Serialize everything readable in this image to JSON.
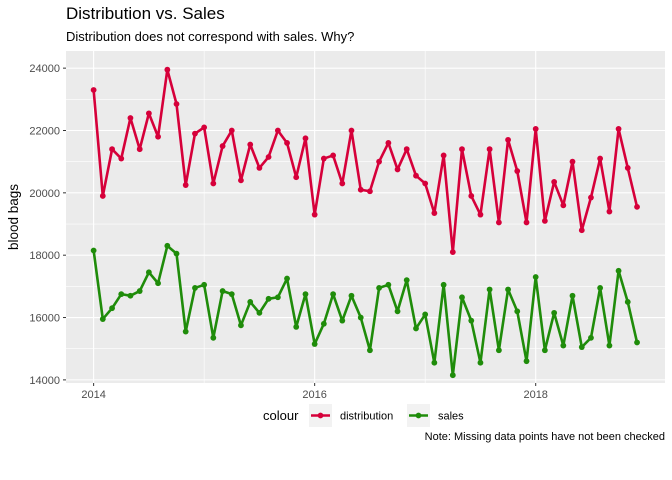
{
  "title": "Distribution vs. Sales",
  "subtitle": "Distribution does not correspond with sales. Why?",
  "caption": "Note: Missing data points have not been checked",
  "chart_data": {
    "type": "line",
    "ylabel": "blood bags",
    "xlim": [
      2013.75,
      2019.17
    ],
    "ylim": [
      13900,
      24550
    ],
    "x_ticks": [
      2014,
      2016,
      2018
    ],
    "y_ticks": [
      14000,
      16000,
      18000,
      20000,
      22000,
      24000
    ],
    "x_tick_labels": [
      "2014",
      "2016",
      "2018"
    ],
    "y_tick_labels": [
      "14000",
      "16000",
      "18000",
      "20000",
      "22000",
      "24000"
    ],
    "grid": true,
    "legend": {
      "title": "colour",
      "position": "bottom",
      "entries": [
        "distribution",
        "sales"
      ]
    },
    "x": [
      2014.0,
      2014.083,
      2014.167,
      2014.25,
      2014.333,
      2014.417,
      2014.5,
      2014.583,
      2014.667,
      2014.75,
      2014.833,
      2014.917,
      2015.0,
      2015.083,
      2015.167,
      2015.25,
      2015.333,
      2015.417,
      2015.5,
      2015.583,
      2015.667,
      2015.75,
      2015.833,
      2015.917,
      2016.0,
      2016.083,
      2016.167,
      2016.25,
      2016.333,
      2016.417,
      2016.5,
      2016.583,
      2016.667,
      2016.75,
      2016.833,
      2016.917,
      2017.0,
      2017.083,
      2017.167,
      2017.25,
      2017.333,
      2017.417,
      2017.5,
      2017.583,
      2017.667,
      2017.75,
      2017.833,
      2017.917,
      2018.0,
      2018.083,
      2018.167,
      2018.25,
      2018.333,
      2018.417,
      2018.5,
      2018.583,
      2018.667,
      2018.75,
      2018.833,
      2018.917
    ],
    "series": [
      {
        "name": "distribution",
        "color": "#d6003a",
        "values": [
          23300,
          19900,
          21400,
          21100,
          22400,
          21400,
          22550,
          21800,
          23950,
          22850,
          20250,
          21900,
          22100,
          20300,
          21500,
          22000,
          20400,
          21550,
          20800,
          21150,
          22000,
          21600,
          20500,
          21750,
          19300,
          21100,
          21200,
          20300,
          22000,
          20100,
          20050,
          21000,
          21600,
          20750,
          21400,
          20550,
          20300,
          19350,
          21200,
          18100,
          21400,
          19900,
          19300,
          21400,
          19050,
          21700,
          20700,
          19050,
          22050,
          19100,
          20350,
          19600,
          21000,
          18800,
          19850,
          21100,
          19400,
          22050,
          20800,
          19550
        ]
      },
      {
        "name": "sales",
        "color": "#1f8c0a",
        "values": [
          18150,
          15950,
          16300,
          16750,
          16700,
          16850,
          17450,
          17100,
          18300,
          18050,
          15550,
          16950,
          17050,
          15350,
          16850,
          16750,
          15750,
          16500,
          16150,
          16600,
          16650,
          17250,
          15700,
          16750,
          15150,
          15800,
          16750,
          15900,
          16700,
          16000,
          14950,
          16950,
          17050,
          16200,
          17200,
          15650,
          16100,
          14550,
          17050,
          14150,
          16650,
          15900,
          14550,
          16900,
          14950,
          16900,
          16200,
          14600,
          17300,
          14950,
          16150,
          15100,
          16700,
          15050,
          15350,
          16950,
          15100,
          17500,
          16500,
          15200
        ]
      }
    ]
  }
}
